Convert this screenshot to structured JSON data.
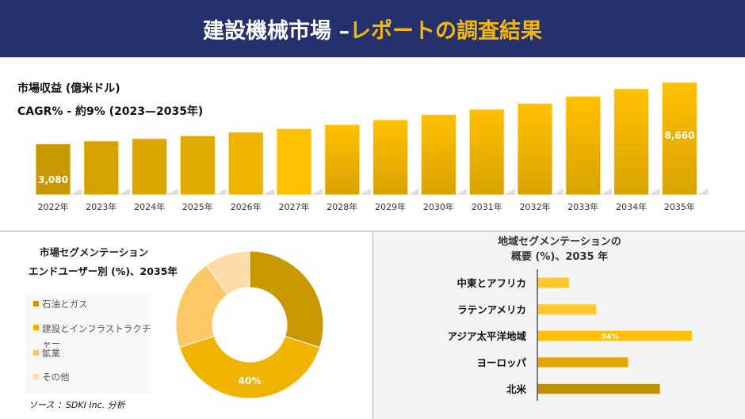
{
  "header": {
    "title_main": "建設機械市場 –",
    "title_accent": "レポートの調査結果",
    "bg": "#25316d",
    "accent": "#f5b800"
  },
  "chart_data": [
    {
      "type": "bar",
      "title": "市場収益 (億米ドル)",
      "subtitle": "CAGR% - 約9% (2023—2035年)",
      "categories": [
        "2022年",
        "2023年",
        "2024年",
        "2025年",
        "2026年",
        "2027年",
        "2028年",
        "2029年",
        "2030年",
        "2031年",
        "2032年",
        "2033年",
        "2034年",
        "2035年"
      ],
      "values": [
        3080,
        3350,
        3560,
        3820,
        4140,
        4460,
        4830,
        5260,
        5740,
        6220,
        6750,
        7390,
        8080,
        8660
      ],
      "data_labels": {
        "0": "3,080",
        "13": "8,660"
      },
      "ylim": [
        1100,
        8700
      ],
      "grid": false
    },
    {
      "type": "pie",
      "donut": true,
      "title": "市場セグメンテーション",
      "subtitle": "エンドユーザー別 (%)、2035年",
      "categories": [
        "石油とガス",
        "建設とインフラストラクチャー",
        "鉱業",
        "その他"
      ],
      "values": [
        30,
        40,
        20,
        10
      ],
      "colors": [
        "#c99700",
        "#f0b400",
        "#fdc865",
        "#fddcaa"
      ],
      "data_labels": {
        "1": "40%"
      },
      "legend": "left"
    },
    {
      "type": "bar",
      "orientation": "horizontal",
      "title": "地域セグメンテーションの",
      "subtitle": "概要 (%)、2035 年",
      "categories": [
        "中東とアフリカ",
        "ラテンアメリカ",
        "アジア太平洋地域",
        "ヨーロッパ",
        "北米"
      ],
      "values": [
        7,
        13,
        34,
        20,
        27
      ],
      "colors": [
        "#ffc72c",
        "#ffc72c",
        "#ffc000",
        "#e2a800",
        "#c08f00"
      ],
      "data_labels": {
        "2": "34%"
      }
    }
  ],
  "source": "ソース ：SDKI Inc. 分析"
}
